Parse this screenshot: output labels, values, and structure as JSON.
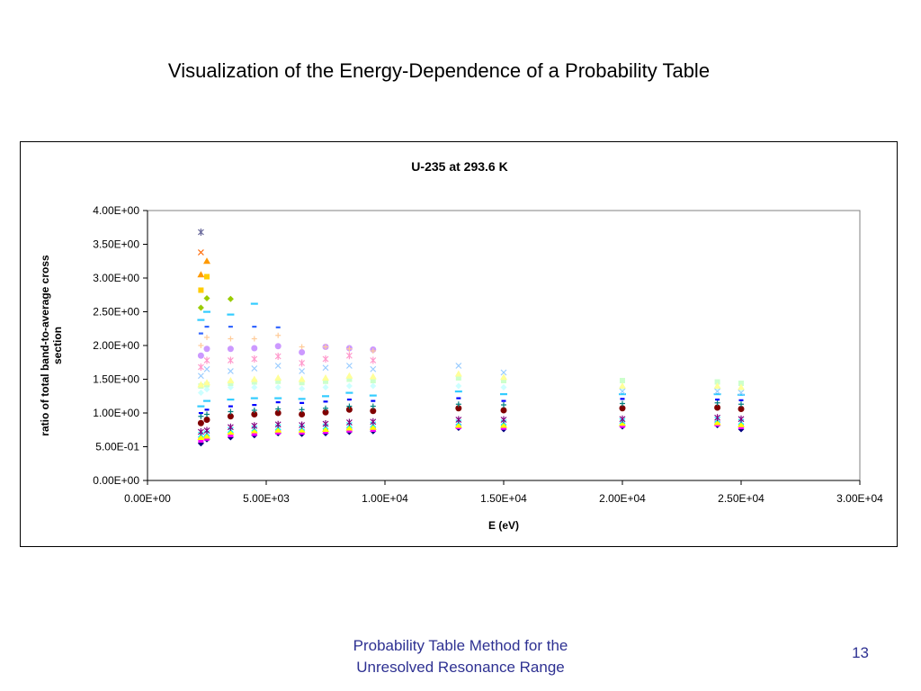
{
  "slide": {
    "title": "Visualization of the Energy-Dependence of a Probability Table",
    "footer_line1": "Probability Table Method for the",
    "footer_line2": "Unresolved Resonance Range",
    "page_number": "13",
    "footer_color": "#2e3192"
  },
  "chart_data": {
    "type": "scatter",
    "title": "U-235 at 293.6 K",
    "xlabel": "E (eV)",
    "ylabel_lines": [
      "ratio of total band-to-average cross",
      "section"
    ],
    "xlim": [
      0,
      30000
    ],
    "ylim": [
      0,
      4
    ],
    "xticks": [
      0,
      5000,
      10000,
      15000,
      20000,
      25000,
      30000
    ],
    "xtick_labels": [
      "0.00E+00",
      "5.00E+03",
      "1.00E+04",
      "1.50E+04",
      "2.00E+04",
      "2.50E+04",
      "3.00E+04"
    ],
    "yticks": [
      0,
      0.5,
      1.0,
      1.5,
      2.0,
      2.5,
      3.0,
      3.5,
      4.0
    ],
    "ytick_labels": [
      "0.00E+00",
      "5.00E-01",
      "1.00E+00",
      "1.50E+00",
      "2.00E+00",
      "2.50E+00",
      "3.00E+00",
      "3.50E+00",
      "4.00E+00"
    ],
    "grid": false,
    "legend": "none",
    "x": [
      2250,
      2500,
      3500,
      4500,
      5500,
      6500,
      7500,
      8500,
      9500,
      13100,
      15000,
      20000,
      24000,
      25000
    ],
    "series": [
      {
        "marker": "diamond",
        "color": "#000080",
        "values": [
          0.55,
          0.61,
          0.64,
          0.67,
          0.7,
          0.69,
          0.7,
          0.72,
          0.73,
          0.78,
          0.76,
          0.8,
          0.82,
          0.76
        ]
      },
      {
        "marker": "square",
        "color": "#ff00ff",
        "values": [
          0.6,
          0.63,
          0.68,
          0.7,
          0.72,
          0.72,
          0.73,
          0.75,
          0.76,
          0.8,
          0.79,
          0.82,
          0.84,
          0.8
        ]
      },
      {
        "marker": "triangle",
        "color": "#ffff00",
        "values": [
          0.64,
          0.66,
          0.72,
          0.74,
          0.75,
          0.75,
          0.76,
          0.78,
          0.79,
          0.82,
          0.82,
          0.85,
          0.86,
          0.83
        ]
      },
      {
        "marker": "x",
        "color": "#00ffff",
        "values": [
          0.68,
          0.7,
          0.75,
          0.77,
          0.79,
          0.78,
          0.8,
          0.82,
          0.83,
          0.86,
          0.86,
          0.88,
          0.9,
          0.87
        ]
      },
      {
        "marker": "star",
        "color": "#800080",
        "values": [
          0.72,
          0.74,
          0.79,
          0.81,
          0.83,
          0.82,
          0.84,
          0.86,
          0.87,
          0.9,
          0.9,
          0.91,
          0.93,
          0.91
        ]
      },
      {
        "marker": "circle",
        "color": "#800000",
        "values": [
          0.85,
          0.9,
          0.95,
          0.98,
          1.0,
          0.98,
          1.01,
          1.05,
          1.03,
          1.07,
          1.04,
          1.07,
          1.08,
          1.06
        ]
      },
      {
        "marker": "plus",
        "color": "#008080",
        "values": [
          0.95,
          0.98,
          1.02,
          1.04,
          1.06,
          1.05,
          1.07,
          1.1,
          1.1,
          1.13,
          1.12,
          1.14,
          1.15,
          1.13
        ]
      },
      {
        "marker": "dash",
        "color": "#0000ff",
        "values": [
          1.0,
          1.05,
          1.1,
          1.12,
          1.16,
          1.15,
          1.17,
          1.2,
          1.18,
          1.22,
          1.18,
          1.21,
          1.2,
          1.19
        ]
      },
      {
        "marker": "bar",
        "color": "#33ccff",
        "values": [
          1.1,
          1.18,
          1.2,
          1.22,
          1.22,
          1.21,
          1.25,
          1.3,
          1.26,
          1.32,
          1.28,
          1.28,
          1.28,
          1.27
        ]
      },
      {
        "marker": "diamond",
        "color": "#ccffff",
        "values": [
          1.3,
          1.35,
          1.38,
          1.38,
          1.38,
          1.36,
          1.38,
          1.4,
          1.4,
          1.4,
          1.38,
          1.38,
          1.38,
          1.36
        ]
      },
      {
        "marker": "square",
        "color": "#ccffcc",
        "values": [
          1.4,
          1.42,
          1.44,
          1.46,
          1.47,
          1.45,
          1.47,
          1.5,
          1.48,
          1.52,
          1.48,
          1.48,
          1.46,
          1.44
        ]
      },
      {
        "marker": "triangle",
        "color": "#ffff99",
        "values": [
          1.42,
          1.45,
          1.48,
          1.5,
          1.52,
          1.5,
          1.52,
          1.55,
          1.54,
          1.58,
          1.53,
          1.4,
          1.4,
          1.38
        ]
      },
      {
        "marker": "x",
        "color": "#99ccff",
        "values": [
          1.55,
          1.65,
          1.62,
          1.66,
          1.7,
          1.62,
          1.67,
          1.7,
          1.65,
          1.7,
          1.6,
          1.32,
          1.32,
          1.3
        ]
      },
      {
        "marker": "star",
        "color": "#ff99cc",
        "values": [
          1.68,
          1.78,
          1.78,
          1.8,
          1.84,
          1.74,
          1.8,
          1.85,
          1.78,
          null,
          null,
          null,
          null,
          null
        ]
      },
      {
        "marker": "circle",
        "color": "#cc99ff",
        "values": [
          1.85,
          1.95,
          1.95,
          1.96,
          1.99,
          1.9,
          1.98,
          1.96,
          1.94,
          null,
          null,
          null,
          null,
          null
        ]
      },
      {
        "marker": "plus",
        "color": "#ffcc99",
        "values": [
          2.0,
          2.12,
          2.1,
          2.1,
          2.15,
          1.98,
          1.98,
          1.95,
          1.92,
          null,
          null,
          null,
          null,
          null
        ]
      },
      {
        "marker": "dash",
        "color": "#3366ff",
        "values": [
          2.18,
          2.28,
          2.28,
          2.28,
          2.27,
          null,
          null,
          null,
          null,
          null,
          null,
          null,
          null,
          null
        ]
      },
      {
        "marker": "bar",
        "color": "#33ccff",
        "values": [
          2.38,
          2.5,
          2.46,
          2.62,
          null,
          null,
          null,
          null,
          null,
          null,
          null,
          null,
          null,
          null
        ]
      },
      {
        "marker": "diamond",
        "color": "#99cc00",
        "values": [
          2.56,
          2.7,
          2.69,
          null,
          null,
          null,
          null,
          null,
          null,
          null,
          null,
          null,
          null,
          null
        ]
      },
      {
        "marker": "square",
        "color": "#ffcc00",
        "values": [
          2.82,
          3.02,
          null,
          null,
          null,
          null,
          null,
          null,
          null,
          null,
          null,
          null,
          null,
          null
        ]
      },
      {
        "marker": "triangle",
        "color": "#ff9900",
        "values": [
          3.05,
          3.25,
          null,
          null,
          null,
          null,
          null,
          null,
          null,
          null,
          null,
          null,
          null,
          null
        ]
      },
      {
        "marker": "x",
        "color": "#ff6600",
        "values": [
          3.38,
          null,
          null,
          null,
          null,
          null,
          null,
          null,
          null,
          null,
          null,
          null,
          null,
          null
        ]
      },
      {
        "marker": "star",
        "color": "#666699",
        "values": [
          3.68,
          null,
          null,
          null,
          null,
          null,
          null,
          null,
          null,
          null,
          null,
          null,
          null,
          null
        ]
      }
    ]
  }
}
